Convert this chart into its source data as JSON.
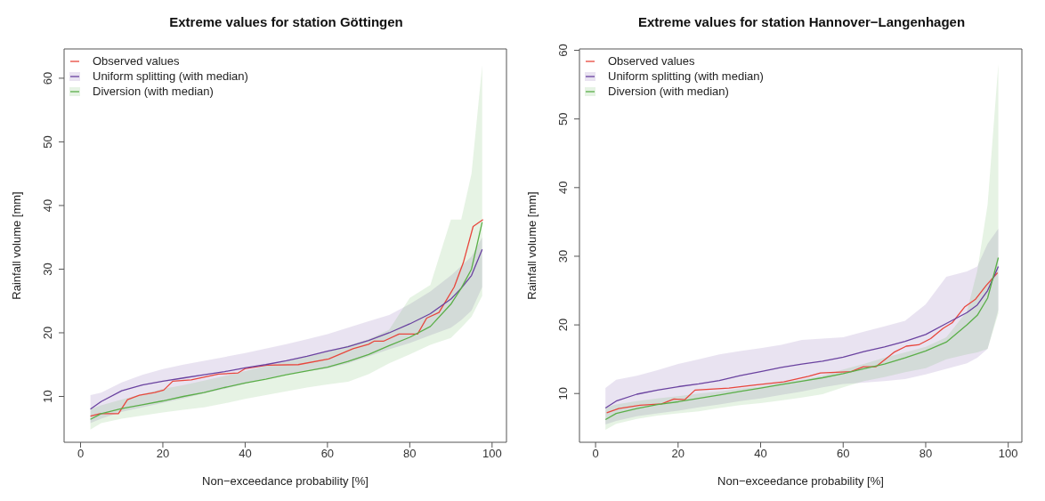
{
  "chart_data": [
    {
      "type": "line",
      "title": "Extreme values for station Göttingen",
      "xlabel": "Non−exceedance probability [%]",
      "ylabel": "Rainfall volume [mm]",
      "x": [
        2.4,
        5,
        10,
        15,
        20,
        25,
        30,
        35,
        40,
        45,
        50,
        55,
        60,
        65,
        70,
        75,
        80,
        85,
        90,
        92.5,
        95,
        97.6
      ],
      "series": [
        {
          "name": "Observed values",
          "color": "#e8463c",
          "x": [
            2.4,
            4.7,
            9.2,
            11.4,
            14.3,
            18,
            20.2,
            22.4,
            26.9,
            33.5,
            38.3,
            40.1,
            45.3,
            52.9,
            60.3,
            66.2,
            70,
            71.4,
            73.7,
            77.4,
            81.9,
            84.1,
            87.1,
            90.8,
            93,
            95.4,
            97.8
          ],
          "values": [
            6.9,
            7.3,
            7.3,
            9.5,
            10.2,
            10.6,
            11.0,
            12.4,
            12.6,
            13.5,
            13.7,
            14.4,
            14.9,
            15.0,
            15.9,
            17.5,
            18.2,
            18.7,
            18.7,
            19.8,
            19.8,
            22.3,
            23.2,
            27.2,
            31.0,
            36.7,
            37.8
          ]
        },
        {
          "name": "Uniform splitting (with median)",
          "color": "#6a42a0",
          "values": [
            8.0,
            9.2,
            10.9,
            11.8,
            12.4,
            12.9,
            13.4,
            13.9,
            14.5,
            15.0,
            15.6,
            16.3,
            17.1,
            17.8,
            18.8,
            20.0,
            21.4,
            23.0,
            25.3,
            27.0,
            29.0,
            33.1
          ],
          "lower": [
            5.8,
            6.5,
            7.6,
            8.3,
            9.0,
            9.7,
            10.5,
            11.2,
            12.0,
            12.8,
            13.5,
            14.0,
            14.4,
            15.2,
            16.3,
            17.4,
            18.4,
            19.6,
            20.8,
            22.0,
            23.5,
            27.2
          ],
          "upper": [
            10.2,
            10.6,
            12.2,
            13.4,
            14.3,
            15.0,
            15.6,
            16.2,
            16.8,
            17.5,
            18.2,
            19.0,
            19.8,
            20.8,
            21.8,
            22.8,
            24.5,
            26.5,
            29.0,
            30.5,
            32.0,
            35.0
          ]
        },
        {
          "name": "Diversion (with median)",
          "color": "#5aae48",
          "values": [
            6.4,
            7.3,
            8.1,
            8.7,
            9.3,
            10.0,
            10.6,
            11.4,
            12.1,
            12.7,
            13.4,
            14.0,
            14.6,
            15.5,
            16.6,
            18.0,
            19.3,
            21.0,
            24.5,
            27.0,
            30.0,
            37.4
          ],
          "lower": [
            4.8,
            5.8,
            6.5,
            7.0,
            7.5,
            7.9,
            8.3,
            8.9,
            9.6,
            10.2,
            10.8,
            11.4,
            11.9,
            12.3,
            13.5,
            15.2,
            16.6,
            18.1,
            19.2,
            20.8,
            22.5,
            25.8
          ],
          "upper": [
            8.0,
            8.6,
            9.5,
            10.4,
            11.2,
            11.8,
            12.5,
            13.2,
            14.0,
            14.8,
            15.5,
            16.3,
            17.0,
            18.0,
            19.0,
            20.5,
            25.5,
            27.5,
            37.8,
            37.8,
            45.0,
            62.0
          ]
        }
      ],
      "xlim": [
        -4,
        103.5
      ],
      "ylim": [
        2.8,
        64.6
      ],
      "xticks": [
        0,
        20,
        40,
        60,
        80,
        100
      ],
      "yticks": [
        10,
        20,
        30,
        40,
        50,
        60
      ],
      "legend": "top left",
      "marker": "none"
    },
    {
      "type": "line",
      "title": "Extreme values for station Hannover−Langenhagen",
      "xlabel": "Non−exceedance probability [%]",
      "ylabel": "Rainfall volume [mm]",
      "x": [
        2.4,
        5,
        10,
        15,
        20,
        25,
        30,
        35,
        40,
        45,
        50,
        55,
        60,
        65,
        70,
        75,
        80,
        85,
        90,
        92.5,
        95,
        97.6
      ],
      "series": [
        {
          "name": "Observed values",
          "color": "#e8463c",
          "x": [
            2.7,
            5.6,
            10.8,
            16,
            19,
            21.6,
            24.1,
            32.3,
            38.2,
            45.6,
            51.6,
            54.5,
            61.9,
            64.9,
            67.9,
            72.3,
            75.3,
            78.3,
            81.2,
            84.2,
            86.4,
            89.4,
            92,
            94.6,
            97.4
          ],
          "values": [
            7.2,
            7.8,
            8.3,
            8.5,
            9.2,
            9.1,
            10.5,
            10.8,
            11.2,
            11.7,
            12.5,
            13.0,
            13.2,
            13.9,
            13.9,
            16.0,
            16.9,
            17.1,
            18.0,
            19.5,
            20.3,
            22.6,
            23.7,
            25.7,
            27.6
          ]
        },
        {
          "name": "Uniform splitting (with median)",
          "color": "#6a42a0",
          "values": [
            7.9,
            8.9,
            9.9,
            10.5,
            11.0,
            11.4,
            11.9,
            12.6,
            13.2,
            13.8,
            14.3,
            14.7,
            15.3,
            16.1,
            16.8,
            17.6,
            18.6,
            20.2,
            21.8,
            22.9,
            25.0,
            28.5
          ],
          "lower": [
            5.5,
            6.0,
            6.7,
            7.1,
            7.5,
            8.0,
            8.4,
            8.9,
            9.3,
            9.8,
            10.3,
            10.9,
            11.4,
            11.6,
            11.8,
            12.1,
            12.8,
            13.6,
            14.4,
            15.2,
            16.5,
            22.2
          ],
          "upper": [
            10.8,
            12.0,
            12.6,
            13.4,
            14.3,
            15.0,
            15.7,
            16.2,
            16.6,
            17.1,
            17.8,
            18.0,
            18.2,
            19.0,
            19.8,
            20.6,
            23.0,
            27.0,
            27.8,
            28.5,
            31.8,
            34.0
          ]
        },
        {
          "name": "Diversion (with median)",
          "color": "#5aae48",
          "values": [
            6.2,
            7.1,
            7.8,
            8.4,
            8.8,
            9.3,
            9.8,
            10.3,
            10.8,
            11.3,
            11.8,
            12.3,
            12.9,
            13.6,
            14.3,
            15.2,
            16.2,
            17.5,
            20.0,
            21.4,
            23.9,
            29.8
          ],
          "lower": [
            4.7,
            5.6,
            6.3,
            6.8,
            7.1,
            7.4,
            7.9,
            8.3,
            8.6,
            9.0,
            9.4,
            9.9,
            10.9,
            11.8,
            12.4,
            13.1,
            13.7,
            15.0,
            15.7,
            16.0,
            16.5,
            21.7
          ],
          "upper": [
            8.0,
            8.4,
            8.9,
            9.3,
            9.6,
            10.0,
            10.3,
            10.7,
            11.0,
            11.6,
            12.0,
            12.6,
            13.5,
            14.3,
            15.2,
            16.0,
            16.8,
            18.2,
            22.0,
            27.9,
            37.5,
            58.0
          ]
        }
      ],
      "xlim": [
        -3.9,
        103.3
      ],
      "ylim": [
        2.9,
        60.2
      ],
      "xticks": [
        0,
        20,
        40,
        60,
        80,
        100
      ],
      "yticks": [
        10,
        20,
        30,
        40,
        50,
        60
      ],
      "legend": "top left",
      "marker": "none"
    }
  ]
}
